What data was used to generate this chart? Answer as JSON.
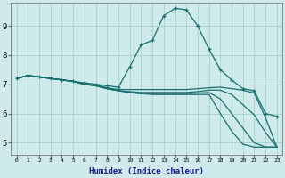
{
  "xlabel": "Humidex (Indice chaleur)",
  "bg_color": "#ceeaea",
  "grid_color": "#aacece",
  "line_color": "#1a6e6e",
  "xlim": [
    -0.5,
    23.5
  ],
  "ylim": [
    4.6,
    9.8
  ],
  "yticks": [
    5,
    6,
    7,
    8,
    9
  ],
  "xticks": [
    0,
    1,
    2,
    3,
    4,
    5,
    6,
    7,
    8,
    9,
    10,
    11,
    12,
    13,
    14,
    15,
    16,
    17,
    18,
    19,
    20,
    21,
    22,
    23
  ],
  "lines": [
    {
      "x": [
        0,
        1,
        2,
        3,
        4,
        5,
        6,
        7,
        8,
        9,
        10,
        11,
        12,
        13,
        14,
        15,
        16,
        17,
        18,
        19,
        20,
        21,
        22,
        23
      ],
      "y": [
        7.2,
        7.3,
        7.25,
        7.2,
        7.15,
        7.1,
        7.05,
        7.0,
        6.95,
        6.9,
        7.6,
        8.35,
        8.5,
        9.35,
        9.6,
        9.55,
        9.0,
        8.2,
        7.5,
        7.15,
        6.85,
        6.78,
        6.0,
        5.9
      ],
      "marker": true
    },
    {
      "x": [
        0,
        1,
        2,
        3,
        4,
        5,
        6,
        7,
        8,
        9,
        10,
        11,
        12,
        13,
        14,
        15,
        16,
        17,
        18,
        19,
        20,
        21,
        22,
        23
      ],
      "y": [
        7.2,
        7.3,
        7.25,
        7.2,
        7.15,
        7.1,
        7.0,
        6.98,
        6.88,
        6.82,
        6.82,
        6.82,
        6.82,
        6.82,
        6.82,
        6.82,
        6.85,
        6.88,
        6.9,
        6.85,
        6.8,
        6.7,
        5.85,
        4.85
      ],
      "marker": false
    },
    {
      "x": [
        0,
        1,
        2,
        3,
        4,
        5,
        6,
        7,
        8,
        9,
        10,
        11,
        12,
        13,
        14,
        15,
        16,
        17,
        18,
        19,
        20,
        21,
        22,
        23
      ],
      "y": [
        7.2,
        7.3,
        7.25,
        7.2,
        7.15,
        7.1,
        7.0,
        6.95,
        6.85,
        6.78,
        6.75,
        6.72,
        6.72,
        6.72,
        6.72,
        6.72,
        6.75,
        6.8,
        6.8,
        6.65,
        6.3,
        5.95,
        5.35,
        4.85
      ],
      "marker": false
    },
    {
      "x": [
        0,
        1,
        2,
        3,
        4,
        5,
        6,
        7,
        8,
        9,
        10,
        11,
        12,
        13,
        14,
        15,
        16,
        17,
        18,
        19,
        20,
        21,
        22,
        23
      ],
      "y": [
        7.2,
        7.3,
        7.25,
        7.2,
        7.15,
        7.1,
        7.0,
        6.95,
        6.85,
        6.78,
        6.72,
        6.68,
        6.68,
        6.68,
        6.68,
        6.68,
        6.7,
        6.72,
        6.5,
        6.0,
        5.5,
        5.0,
        4.85,
        4.85
      ],
      "marker": false
    },
    {
      "x": [
        0,
        1,
        2,
        3,
        4,
        5,
        6,
        7,
        8,
        9,
        10,
        11,
        12,
        13,
        14,
        15,
        16,
        17,
        18,
        19,
        20,
        21,
        22,
        23
      ],
      "y": [
        7.2,
        7.3,
        7.25,
        7.2,
        7.15,
        7.1,
        7.0,
        6.95,
        6.85,
        6.78,
        6.72,
        6.68,
        6.65,
        6.65,
        6.65,
        6.65,
        6.65,
        6.65,
        6.0,
        5.4,
        4.95,
        4.85,
        4.85,
        4.85
      ],
      "marker": false
    }
  ]
}
